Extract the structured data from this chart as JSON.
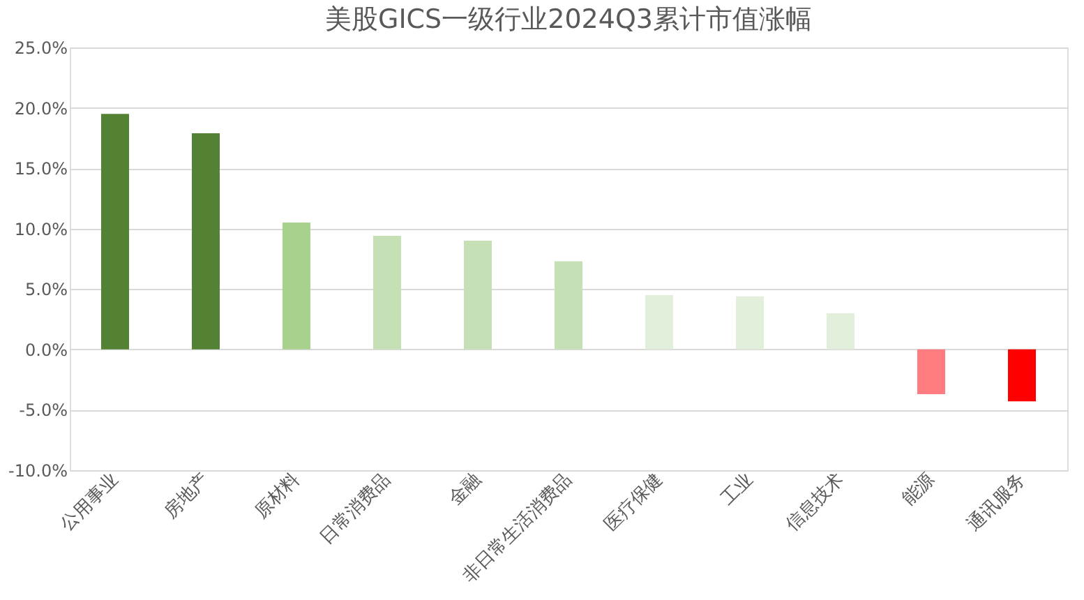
{
  "chart_data": {
    "type": "bar",
    "title": "美股GICS一级行业2024Q3累计市值涨幅",
    "categories": [
      "公用事业",
      "房地产",
      "原材料",
      "日常消费品",
      "金融",
      "非日常生活消费品",
      "医疗保健",
      "工业",
      "信息技术",
      "能源",
      "通讯服务"
    ],
    "values": [
      19.5,
      17.9,
      10.5,
      9.4,
      9.0,
      7.3,
      4.5,
      4.4,
      3.0,
      -3.7,
      -4.3
    ],
    "colors": [
      "#548235",
      "#548235",
      "#a9d18e",
      "#c5e0b4",
      "#c5e0b4",
      "#c5e0b4",
      "#e2efda",
      "#e2efda",
      "#e2efda",
      "#ff7c80",
      "#ff0000"
    ],
    "ylim": [
      -10,
      25
    ],
    "yticks": [
      {
        "value": -10,
        "label": "-10.0%"
      },
      {
        "value": -5,
        "label": "-5.0%"
      },
      {
        "value": 0,
        "label": "0.0%"
      },
      {
        "value": 5,
        "label": "5.0%"
      },
      {
        "value": 10,
        "label": "10.0%"
      },
      {
        "value": 15,
        "label": "15.0%"
      },
      {
        "value": 20,
        "label": "20.0%"
      },
      {
        "value": 25,
        "label": "25.0%"
      }
    ],
    "grid": "y"
  }
}
